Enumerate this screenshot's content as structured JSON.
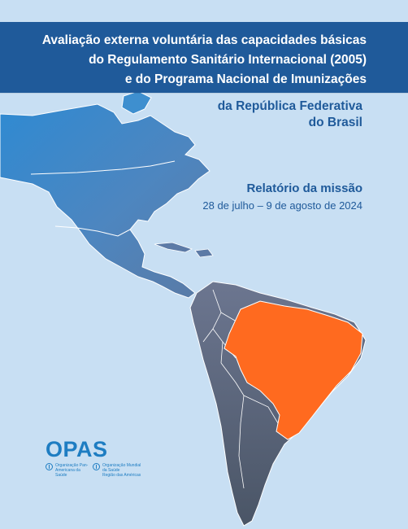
{
  "title": {
    "line1": "Avaliação externa voluntária das capacidades básicas",
    "line2": "do Regulamento Sanitário Internacional (2005)",
    "line3": "e do Programa Nacional de Imunizações"
  },
  "country": {
    "line1": "da República Federativa",
    "line2": "do Brasil"
  },
  "mission": {
    "label": "Relatório da missão",
    "dates": "28 de julho – 9 de agosto de 2024"
  },
  "logo": {
    "acronym": "OPAS",
    "org_left": "Organização Pan-Americana da Saúde",
    "org_right": "Organização Mundial da Saúde",
    "org_right_sub": "Região das Américas"
  },
  "colors": {
    "background": "#c8dff3",
    "banner": "#1f5a9a",
    "brazil": "#ff6a1f",
    "north_america": "#3e8fcf",
    "south_america": "#5c6a80",
    "logo": "#1e7dc2"
  },
  "map": {
    "highlight": "brasil-shape",
    "icons": [
      "americas-map"
    ]
  }
}
